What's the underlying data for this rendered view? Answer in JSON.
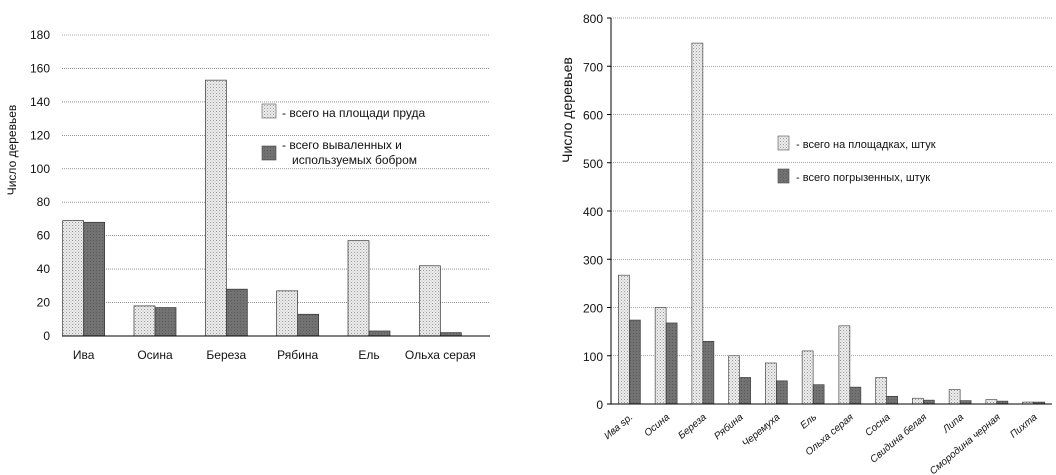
{
  "chart_data": [
    {
      "type": "bar",
      "ylabel": "Число деревьев",
      "ylim": [
        0,
        180
      ],
      "yticks": [
        0,
        20,
        40,
        60,
        80,
        100,
        120,
        140,
        160,
        180
      ],
      "grid": true,
      "legend_position": "right",
      "categories": [
        "Ива",
        "Осина",
        "Береза",
        "Рябина",
        "Ель",
        "Ольха серая"
      ],
      "series": [
        {
          "name": "- всего на площади пруда",
          "values": [
            69,
            18,
            153,
            27,
            57,
            42
          ],
          "color": "#dcdcdc",
          "pattern": "dotted"
        },
        {
          "name": "- всего вываленных и используемых бобром",
          "values": [
            68,
            17,
            28,
            13,
            3,
            2
          ],
          "color": "#6e6e6e",
          "pattern": "solid"
        }
      ]
    },
    {
      "type": "bar",
      "ylabel": "Число деревьев",
      "ylim": [
        0,
        800
      ],
      "yticks": [
        0,
        100,
        200,
        300,
        400,
        500,
        600,
        700,
        800
      ],
      "grid": true,
      "legend_position": "center",
      "categories": [
        "Ива sp.",
        "Осина",
        "Береза",
        "Рябина",
        "Черемуха",
        "Ель",
        "Ольха серая",
        "Сосна",
        "Свидина белая",
        "Липа",
        "Смородина черная",
        "Пихта"
      ],
      "series": [
        {
          "name": "- всего на площадках, штук",
          "values": [
            267,
            200,
            748,
            100,
            85,
            110,
            162,
            55,
            12,
            30,
            9,
            4
          ],
          "color": "#dcdcdc",
          "pattern": "dotted"
        },
        {
          "name": "- всего погрызенных, штук",
          "values": [
            174,
            168,
            130,
            55,
            48,
            40,
            35,
            16,
            8,
            7,
            6,
            4
          ],
          "color": "#6e6e6e",
          "pattern": "solid"
        }
      ]
    }
  ]
}
